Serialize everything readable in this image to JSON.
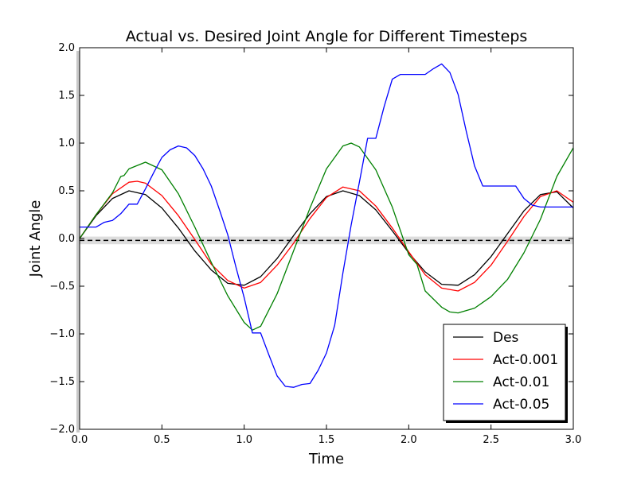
{
  "chart_data": {
    "type": "line",
    "title": "Actual vs. Desired Joint Angle for Different Timesteps",
    "xlabel": "Time",
    "ylabel": "Joint Angle",
    "xlim": [
      0.0,
      3.0
    ],
    "ylim": [
      -2.0,
      2.0
    ],
    "xticks": [
      "0.0",
      "0.5",
      "1.0",
      "1.5",
      "2.0",
      "2.5",
      "3.0"
    ],
    "yticks": [
      "2.0",
      "1.5",
      "1.0",
      "0.5",
      "0.0",
      "−0.5",
      "−1.0",
      "−1.5",
      "−2.0"
    ],
    "grid": false,
    "legend_position": "lower-right",
    "reference_line": {
      "y": -0.02,
      "style": "dashed",
      "color": "#000000"
    },
    "series": [
      {
        "name": "Des",
        "color": "#000000",
        "x": [
          0.0,
          0.1,
          0.2,
          0.3,
          0.4,
          0.5,
          0.6,
          0.7,
          0.8,
          0.9,
          1.0,
          1.1,
          1.2,
          1.3,
          1.4,
          1.5,
          1.6,
          1.7,
          1.8,
          1.9,
          2.0,
          2.1,
          2.2,
          2.3,
          2.4,
          2.5,
          2.6,
          2.7,
          2.8,
          2.9,
          3.0
        ],
        "y": [
          0.0,
          0.24,
          0.42,
          0.5,
          0.46,
          0.32,
          0.11,
          -0.13,
          -0.33,
          -0.47,
          -0.49,
          -0.4,
          -0.21,
          0.03,
          0.26,
          0.44,
          0.5,
          0.45,
          0.3,
          0.08,
          -0.15,
          -0.35,
          -0.48,
          -0.49,
          -0.38,
          -0.19,
          0.05,
          0.29,
          0.46,
          0.49,
          0.32
        ]
      },
      {
        "name": "Act-0.001",
        "color": "#ff0000",
        "x": [
          0.0,
          0.1,
          0.2,
          0.3,
          0.35,
          0.4,
          0.5,
          0.6,
          0.7,
          0.8,
          0.9,
          1.0,
          1.1,
          1.2,
          1.3,
          1.4,
          1.5,
          1.6,
          1.7,
          1.8,
          1.9,
          2.0,
          2.1,
          2.2,
          2.3,
          2.4,
          2.5,
          2.6,
          2.7,
          2.8,
          2.9,
          3.0
        ],
        "y": [
          0.0,
          0.25,
          0.47,
          0.59,
          0.6,
          0.58,
          0.45,
          0.24,
          -0.01,
          -0.27,
          -0.44,
          -0.52,
          -0.46,
          -0.28,
          -0.05,
          0.21,
          0.43,
          0.54,
          0.5,
          0.34,
          0.11,
          -0.14,
          -0.38,
          -0.52,
          -0.55,
          -0.46,
          -0.28,
          -0.03,
          0.23,
          0.44,
          0.5,
          0.38
        ]
      },
      {
        "name": "Act-0.01",
        "color": "#008000",
        "x": [
          0.0,
          0.1,
          0.2,
          0.25,
          0.27,
          0.3,
          0.4,
          0.5,
          0.6,
          0.7,
          0.8,
          0.9,
          1.0,
          1.05,
          1.1,
          1.2,
          1.3,
          1.4,
          1.5,
          1.6,
          1.65,
          1.7,
          1.8,
          1.9,
          2.0,
          2.05,
          2.1,
          2.2,
          2.25,
          2.3,
          2.4,
          2.5,
          2.6,
          2.7,
          2.8,
          2.9,
          3.0
        ],
        "y": [
          0.0,
          0.25,
          0.48,
          0.65,
          0.66,
          0.73,
          0.8,
          0.72,
          0.47,
          0.12,
          -0.25,
          -0.6,
          -0.88,
          -0.96,
          -0.92,
          -0.58,
          -0.13,
          0.32,
          0.73,
          0.97,
          1.0,
          0.96,
          0.72,
          0.33,
          -0.17,
          -0.27,
          -0.55,
          -0.72,
          -0.77,
          -0.78,
          -0.73,
          -0.61,
          -0.43,
          -0.15,
          0.2,
          0.65,
          0.95
        ]
      },
      {
        "name": "Act-0.05",
        "color": "#0000ff",
        "x": [
          0.0,
          0.05,
          0.1,
          0.15,
          0.2,
          0.25,
          0.3,
          0.35,
          0.4,
          0.45,
          0.5,
          0.55,
          0.6,
          0.65,
          0.7,
          0.75,
          0.8,
          0.85,
          0.9,
          0.95,
          1.0,
          1.05,
          1.1,
          1.15,
          1.2,
          1.25,
          1.3,
          1.35,
          1.4,
          1.45,
          1.5,
          1.55,
          1.6,
          1.65,
          1.7,
          1.75,
          1.8,
          1.85,
          1.9,
          1.95,
          2.0,
          2.05,
          2.1,
          2.15,
          2.2,
          2.25,
          2.3,
          2.35,
          2.4,
          2.45,
          2.5,
          2.55,
          2.6,
          2.65,
          2.7,
          2.75,
          2.8,
          2.85,
          2.9,
          2.95,
          3.0
        ],
        "y": [
          0.12,
          0.12,
          0.12,
          0.17,
          0.19,
          0.26,
          0.36,
          0.36,
          0.52,
          0.69,
          0.85,
          0.93,
          0.97,
          0.95,
          0.87,
          0.73,
          0.55,
          0.3,
          0.04,
          -0.3,
          -0.62,
          -0.99,
          -0.99,
          -1.22,
          -1.44,
          -1.55,
          -1.56,
          -1.53,
          -1.52,
          -1.38,
          -1.2,
          -0.91,
          -0.36,
          0.14,
          0.59,
          1.05,
          1.05,
          1.38,
          1.67,
          1.72,
          1.72,
          1.72,
          1.72,
          1.78,
          1.83,
          1.74,
          1.51,
          1.12,
          0.76,
          0.55,
          0.55,
          0.55,
          0.55,
          0.55,
          0.42,
          0.35,
          0.33,
          0.33,
          0.33,
          0.33,
          0.33
        ]
      }
    ]
  }
}
